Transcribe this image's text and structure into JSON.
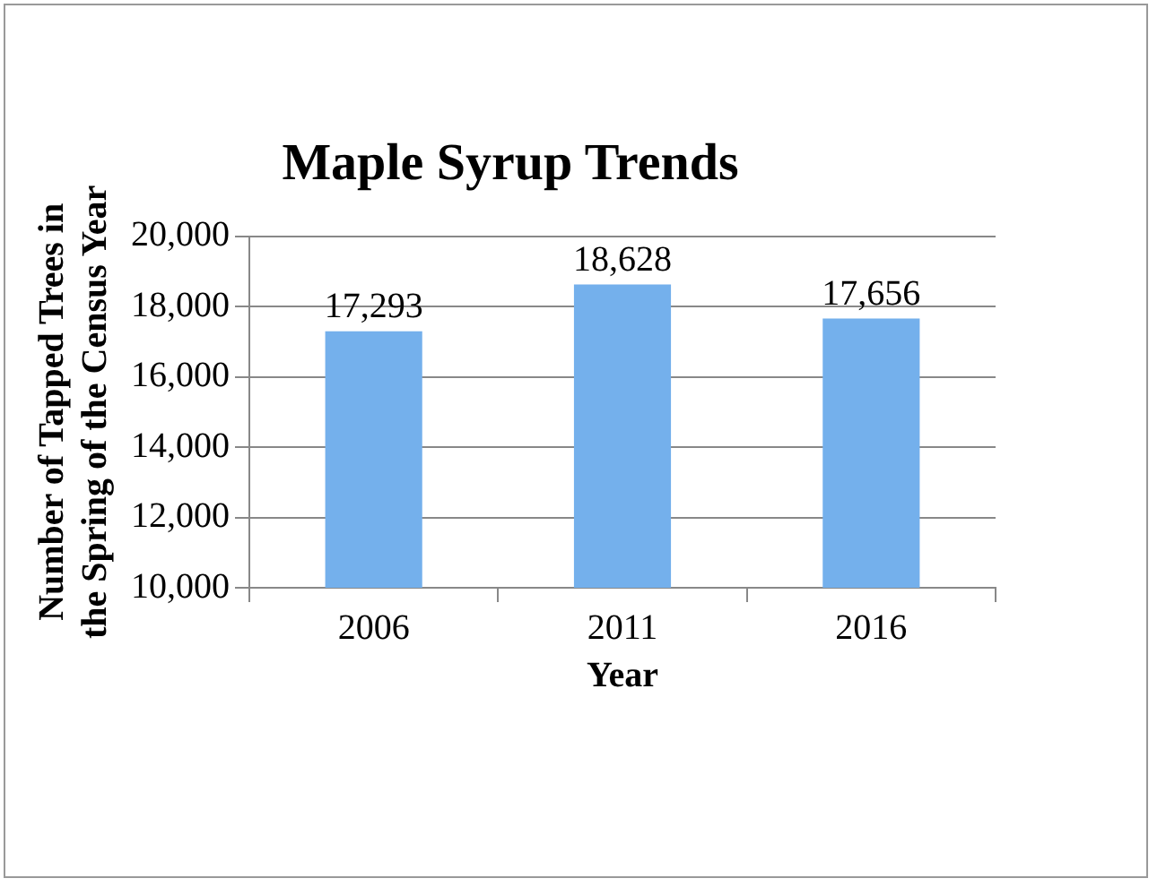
{
  "chart_data": {
    "type": "bar",
    "title": "Maple Syrup Trends",
    "xlabel": "Year",
    "ylabel": "Number of Tapped Trees in\nthe Spring of the Census Year",
    "categories": [
      "2006",
      "2011",
      "2016"
    ],
    "values": [
      17293,
      18628,
      17656
    ],
    "color": "#74b0ec",
    "value_labels": [
      "17,293",
      "18,628",
      "17,656"
    ],
    "ylim": [
      10000,
      20000
    ],
    "yticks": [
      {
        "value": 10000,
        "label": "10,000"
      },
      {
        "value": 12000,
        "label": "12,000"
      },
      {
        "value": 14000,
        "label": "14,000"
      },
      {
        "value": 16000,
        "label": "16,000"
      },
      {
        "value": 18000,
        "label": "18,000"
      },
      {
        "value": 20000,
        "label": "20,000"
      }
    ],
    "grid": "y"
  }
}
